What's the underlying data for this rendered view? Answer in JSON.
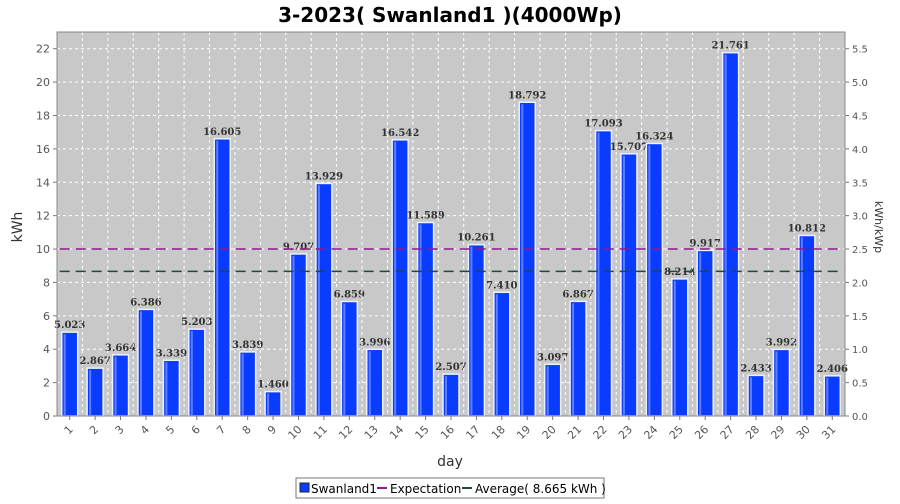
{
  "chart_data": {
    "type": "bar",
    "title": "3-2023( Swanland1 )(4000Wp)",
    "xlabel": "day",
    "ylabel": "kWh",
    "y2label": "kWh/kWp",
    "categories": [
      "1",
      "2",
      "3",
      "4",
      "5",
      "6",
      "7",
      "8",
      "9",
      "10",
      "11",
      "12",
      "13",
      "14",
      "15",
      "16",
      "17",
      "18",
      "19",
      "20",
      "21",
      "22",
      "23",
      "24",
      "25",
      "26",
      "27",
      "28",
      "29",
      "30",
      "31"
    ],
    "series": [
      {
        "name": "Swanland1",
        "color": "#0a3cff",
        "values": [
          5.023,
          2.867,
          3.664,
          6.386,
          3.339,
          5.203,
          16.605,
          3.839,
          1.46,
          9.707,
          13.929,
          6.859,
          3.996,
          16.542,
          11.589,
          2.507,
          10.261,
          7.41,
          18.792,
          3.097,
          6.867,
          17.093,
          15.707,
          16.324,
          8.214,
          9.917,
          21.761,
          2.433,
          3.992,
          10.812,
          2.406
        ],
        "labels": [
          "5.023",
          "2.867",
          "3.664",
          "6.386",
          "3.339",
          "5.203",
          "16.605",
          "3.839",
          "1.460",
          "9.707",
          "13.929",
          "6.859",
          "3.996",
          "16.542",
          "11.589",
          "2.507",
          "10.261",
          "7.410",
          "18.792",
          "3.097",
          "6.867",
          "17.093",
          "15.707",
          "16.324",
          "8.214",
          "9.917",
          "21.761",
          "2.433",
          "3.992",
          "10.812",
          "2.406"
        ]
      }
    ],
    "expectation": {
      "name": "Expectation",
      "value": 10.0,
      "color": "#8b1a8b"
    },
    "average": {
      "name": "Average( 8.665 kWh )",
      "value": 8.665,
      "color": "#1f4a3a"
    },
    "ylim": [
      0,
      23
    ],
    "y_ticks": [
      "0",
      "2",
      "4",
      "6",
      "8",
      "10",
      "12",
      "14",
      "16",
      "18",
      "20",
      "22"
    ],
    "y2lim": [
      0,
      5.75
    ],
    "y2_ticks": [
      "0.0",
      "0.5",
      "1.0",
      "1.5",
      "2.0",
      "2.5",
      "3.0",
      "3.5",
      "4.0",
      "4.5",
      "5.0",
      "5.5"
    ],
    "grid": true,
    "legend_position": "bottom",
    "plot_background": "#c8c8c8"
  }
}
